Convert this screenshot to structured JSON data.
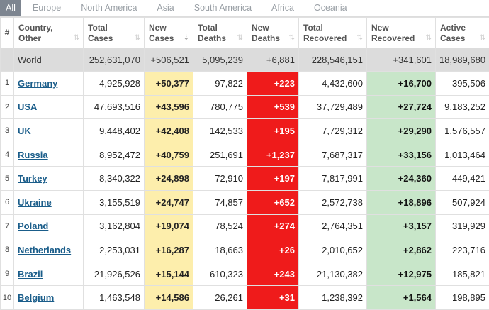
{
  "tabs": [
    "All",
    "Europe",
    "North America",
    "Asia",
    "South America",
    "Africa",
    "Oceania"
  ],
  "columns": [
    {
      "l1": "#",
      "l2": ""
    },
    {
      "l1": "Country,",
      "l2": "Other"
    },
    {
      "l1": "Total",
      "l2": "Cases"
    },
    {
      "l1": "New",
      "l2": "Cases"
    },
    {
      "l1": "Total",
      "l2": "Deaths"
    },
    {
      "l1": "New",
      "l2": "Deaths"
    },
    {
      "l1": "Total",
      "l2": "Recovered"
    },
    {
      "l1": "New",
      "l2": "Recovered"
    },
    {
      "l1": "Active",
      "l2": "Cases"
    }
  ],
  "world": {
    "country": "World",
    "total_cases": "252,631,070",
    "new_cases": "+506,521",
    "total_deaths": "5,095,239",
    "new_deaths": "+6,881",
    "total_recovered": "228,546,151",
    "new_recovered": "+341,601",
    "active": "18,989,680"
  },
  "rows": [
    {
      "num": "1",
      "country": "Germany",
      "total_cases": "4,925,928",
      "new_cases": "+50,377",
      "total_deaths": "97,822",
      "new_deaths": "+223",
      "total_recovered": "4,432,600",
      "new_recovered": "+16,700",
      "active": "395,506"
    },
    {
      "num": "2",
      "country": "USA",
      "total_cases": "47,693,516",
      "new_cases": "+43,596",
      "total_deaths": "780,775",
      "new_deaths": "+539",
      "total_recovered": "37,729,489",
      "new_recovered": "+27,724",
      "active": "9,183,252"
    },
    {
      "num": "3",
      "country": "UK",
      "total_cases": "9,448,402",
      "new_cases": "+42,408",
      "total_deaths": "142,533",
      "new_deaths": "+195",
      "total_recovered": "7,729,312",
      "new_recovered": "+29,290",
      "active": "1,576,557"
    },
    {
      "num": "4",
      "country": "Russia",
      "total_cases": "8,952,472",
      "new_cases": "+40,759",
      "total_deaths": "251,691",
      "new_deaths": "+1,237",
      "total_recovered": "7,687,317",
      "new_recovered": "+33,156",
      "active": "1,013,464"
    },
    {
      "num": "5",
      "country": "Turkey",
      "total_cases": "8,340,322",
      "new_cases": "+24,898",
      "total_deaths": "72,910",
      "new_deaths": "+197",
      "total_recovered": "7,817,991",
      "new_recovered": "+24,360",
      "active": "449,421"
    },
    {
      "num": "6",
      "country": "Ukraine",
      "total_cases": "3,155,519",
      "new_cases": "+24,747",
      "total_deaths": "74,857",
      "new_deaths": "+652",
      "total_recovered": "2,572,738",
      "new_recovered": "+18,896",
      "active": "507,924"
    },
    {
      "num": "7",
      "country": "Poland",
      "total_cases": "3,162,804",
      "new_cases": "+19,074",
      "total_deaths": "78,524",
      "new_deaths": "+274",
      "total_recovered": "2,764,351",
      "new_recovered": "+3,157",
      "active": "319,929"
    },
    {
      "num": "8",
      "country": "Netherlands",
      "total_cases": "2,253,031",
      "new_cases": "+16,287",
      "total_deaths": "18,663",
      "new_deaths": "+26",
      "total_recovered": "2,010,652",
      "new_recovered": "+2,862",
      "active": "223,716"
    },
    {
      "num": "9",
      "country": "Brazil",
      "total_cases": "21,926,526",
      "new_cases": "+15,144",
      "total_deaths": "610,323",
      "new_deaths": "+243",
      "total_recovered": "21,130,382",
      "new_recovered": "+12,975",
      "active": "185,821"
    },
    {
      "num": "10",
      "country": "Belgium",
      "total_cases": "1,463,548",
      "new_cases": "+14,586",
      "total_deaths": "26,261",
      "new_deaths": "+31",
      "total_recovered": "1,238,392",
      "new_recovered": "+1,564",
      "active": "198,895"
    }
  ],
  "colors": {
    "new_cases_bg": "#fdeeac",
    "new_deaths_bg": "#ef1b1b",
    "new_recovered_bg": "#c8e6c9",
    "world_row_bg": "#dcdcdc",
    "active_tab_bg": "#7d8590",
    "link": "#1a5d8a"
  }
}
